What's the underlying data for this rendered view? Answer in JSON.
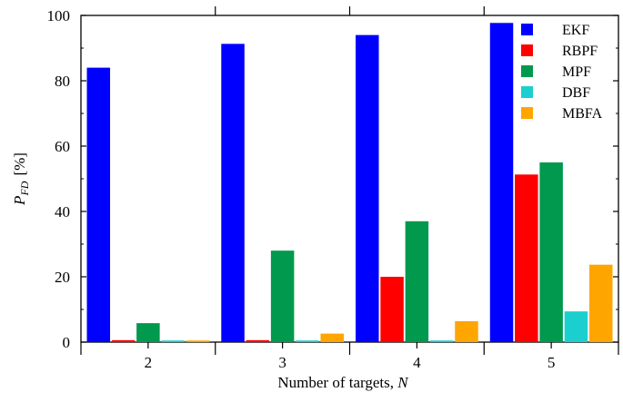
{
  "chart_data": {
    "type": "bar",
    "title": "",
    "xlabel": "Number of targets, N",
    "ylabel": "P_FD [%]",
    "ylabel_main": "P",
    "ylabel_sub": "FD",
    "ylabel_unit": "[%]",
    "xlabel_main": "Number of targets, ",
    "xlabel_var": "N",
    "categories": [
      "2",
      "3",
      "4",
      "5"
    ],
    "ylim": [
      0,
      100
    ],
    "yticks": [
      0,
      20,
      40,
      60,
      80,
      100
    ],
    "grid": false,
    "legend_position": "top-right",
    "series": [
      {
        "name": "EKF",
        "color": "#0000ff",
        "values": [
          84,
          91.3,
          94,
          97.7
        ]
      },
      {
        "name": "RBPF",
        "color": "#ff0000",
        "values": [
          0.6,
          0.6,
          20,
          51.3
        ]
      },
      {
        "name": "MPF",
        "color": "#00994d",
        "values": [
          5.8,
          28,
          37,
          55
        ]
      },
      {
        "name": "DBF",
        "color": "#1ccfcf",
        "values": [
          0.5,
          0.5,
          0.5,
          9.4
        ]
      },
      {
        "name": "MBFA",
        "color": "#ffa500",
        "values": [
          0.5,
          2.6,
          6.4,
          23.7
        ]
      }
    ]
  }
}
